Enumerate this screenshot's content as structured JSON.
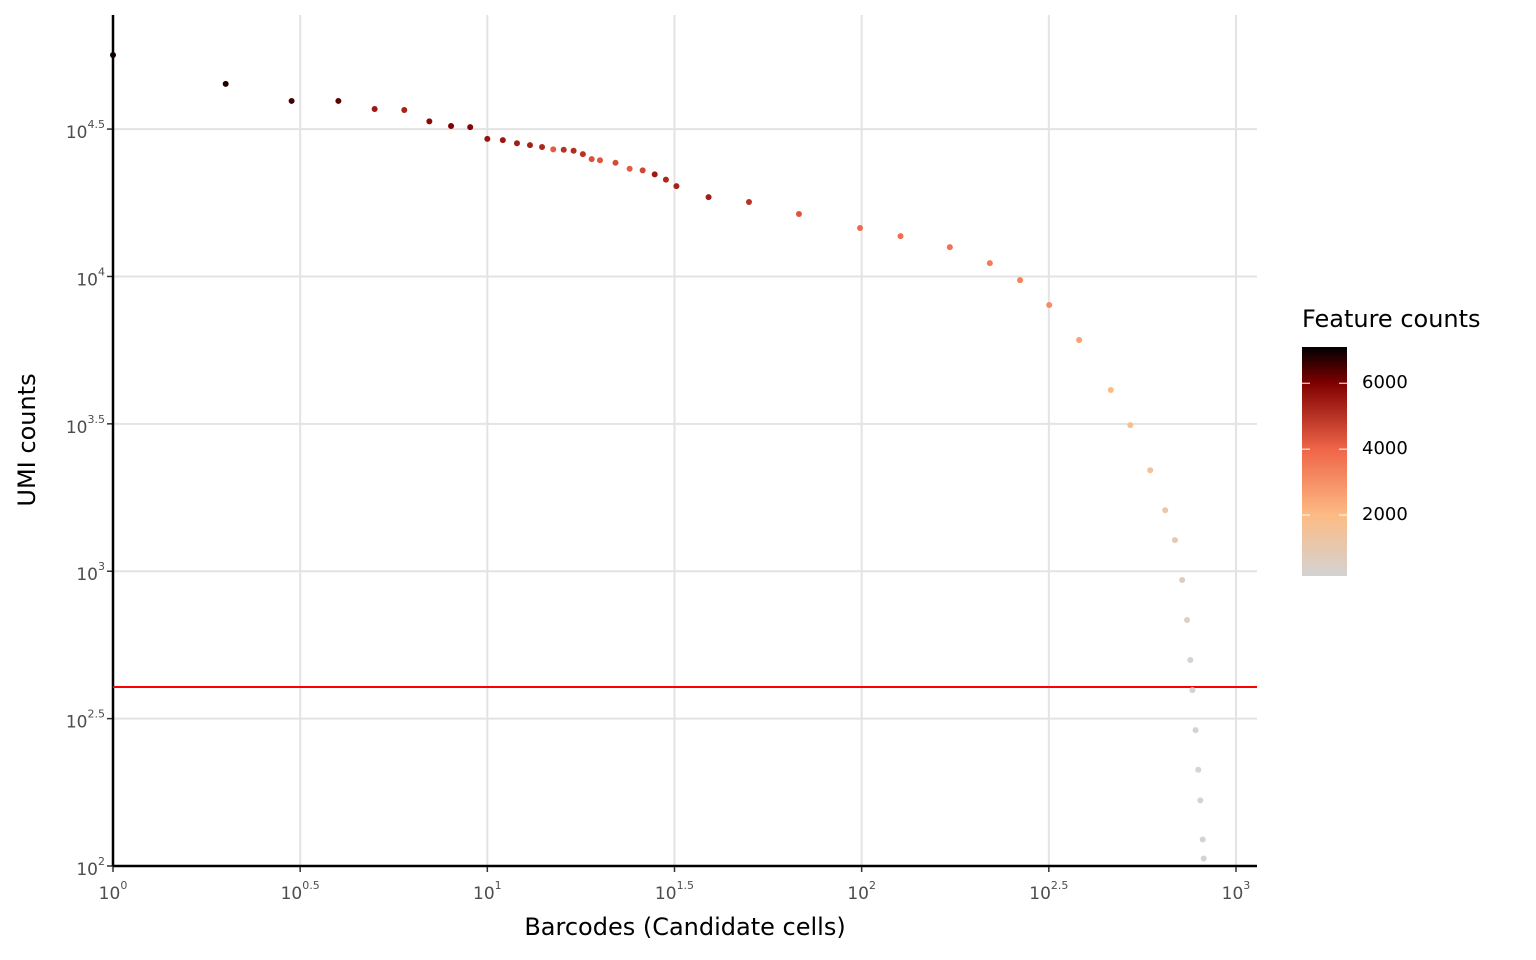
{
  "chart_data": {
    "type": "scatter",
    "x_label": "Barcodes (Candidate cells)",
    "y_label": "UMI counts",
    "log_x": true,
    "log_y": true,
    "grid": true,
    "xlim": [
      1,
      1138
    ],
    "ylim": [
      100,
      77100
    ],
    "xticks": [
      {
        "value": 1,
        "label": [
          "10",
          "0"
        ]
      },
      {
        "value": 3.1623,
        "label": [
          "10",
          "0.5"
        ]
      },
      {
        "value": 10,
        "label": [
          "10",
          "1"
        ]
      },
      {
        "value": 31.623,
        "label": [
          "10",
          "1.5"
        ]
      },
      {
        "value": 100,
        "label": [
          "10",
          "2"
        ]
      },
      {
        "value": 316.23,
        "label": [
          "10",
          "2.5"
        ]
      },
      {
        "value": 1000,
        "label": [
          "10",
          "3"
        ]
      }
    ],
    "yticks": [
      {
        "value": 100,
        "label": [
          "10",
          "2"
        ]
      },
      {
        "value": 316.23,
        "label": [
          "10",
          "2.5"
        ]
      },
      {
        "value": 1000,
        "label": [
          "10",
          "3"
        ]
      },
      {
        "value": 3162.3,
        "label": [
          "10",
          "3.5"
        ]
      },
      {
        "value": 10000,
        "label": [
          "10",
          "4"
        ]
      },
      {
        "value": 31623,
        "label": [
          "10",
          "4.5"
        ]
      }
    ],
    "hline": {
      "value": 405,
      "color": "#ff0000"
    },
    "x": [
      1,
      2,
      3,
      4,
      5,
      6,
      7,
      8,
      9,
      10,
      11,
      12,
      13,
      14,
      15,
      16,
      17,
      18,
      19,
      20,
      22,
      24,
      26,
      28,
      30,
      32,
      39,
      50,
      68,
      99,
      127,
      172,
      220,
      265,
      317,
      381,
      463,
      522,
      590,
      647,
      687,
      718,
      740,
      755,
      765,
      780,
      793,
      803,
      815,
      820
    ],
    "values": [
      56400,
      45000,
      39400,
      39400,
      37000,
      36700,
      33600,
      32400,
      32100,
      29300,
      29000,
      28300,
      27900,
      27500,
      27000,
      26900,
      26700,
      26000,
      25000,
      24800,
      24300,
      23200,
      22900,
      22200,
      21300,
      20260,
      18580,
      17890,
      16290,
      14600,
      13710,
      12580,
      11100,
      9720,
      8000,
      6090,
      4120,
      3130,
      2200,
      1610,
      1275,
      934,
      683,
      500,
      395,
      289,
      212,
      167,
      123,
      106
    ],
    "color_label": "Feature counts",
    "color_values": [
      7000,
      6800,
      6500,
      6300,
      5500,
      5300,
      5800,
      6000,
      5900,
      5600,
      5500,
      5400,
      5300,
      5200,
      4200,
      5000,
      5100,
      5000,
      4400,
      4300,
      4500,
      4200,
      4600,
      5500,
      5200,
      5300,
      5400,
      5000,
      4300,
      3900,
      3800,
      3700,
      3500,
      3300,
      3100,
      2600,
      2000,
      1700,
      1400,
      1100,
      900,
      600,
      400,
      250,
      200,
      180,
      170,
      160,
      155,
      152
    ],
    "colorlim": [
      150,
      7100
    ],
    "colorticks": [
      2000,
      4000,
      6000
    ],
    "colorscale": [
      [
        150,
        "#d3d3d3"
      ],
      [
        2000,
        "#fdbb84"
      ],
      [
        4000,
        "#ef6548"
      ],
      [
        6000,
        "#7f0000"
      ],
      [
        7100,
        "#000000"
      ]
    ]
  }
}
